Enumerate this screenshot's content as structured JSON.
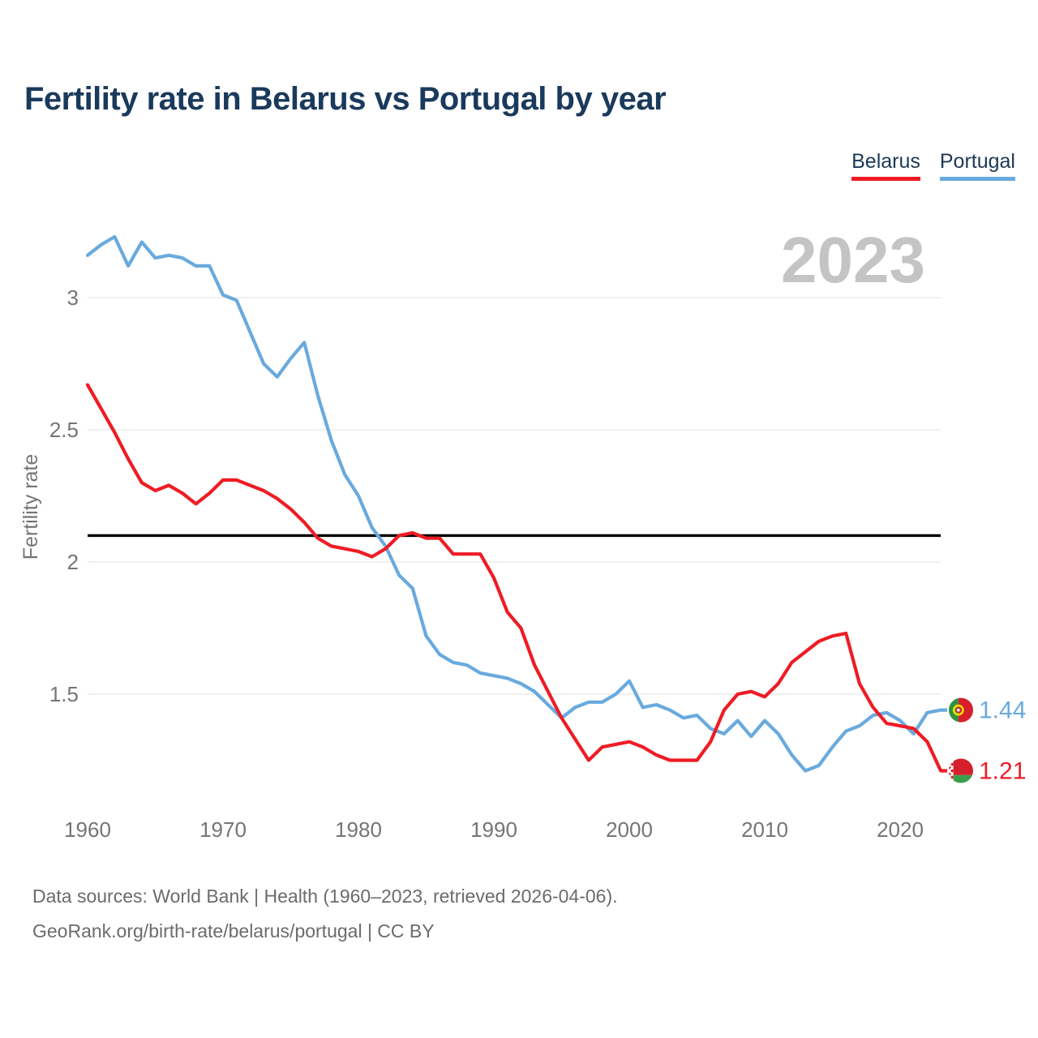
{
  "title": "Fertility rate in Belarus vs Portugal by year",
  "legend": [
    {
      "label": "Belarus",
      "color": "#ee1c25"
    },
    {
      "label": "Portugal",
      "color": "#69aade"
    }
  ],
  "watermark": "2023",
  "footer": {
    "line1": "Data sources: World Bank | Health (1960–2023, retrieved 2026-04-06).",
    "line2": "GeoRank.org/birth-rate/belarus/portugal | CC BY"
  },
  "colors": {
    "belarus_line": "#ee1c25",
    "portugal_line": "#69aade",
    "reference_line": "#000000",
    "gridline": "#ececec",
    "tick_text": "#757575",
    "watermark_text": "#c4c4c4",
    "title_text": "#1a3a5c",
    "footer_text": "#6b6b6b"
  },
  "chart_data": {
    "type": "line",
    "title": "Fertility rate in Belarus vs Portugal by year",
    "xlabel": "",
    "ylabel": "Fertility rate",
    "grid": "horizontal",
    "legend_position": "top-right",
    "watermark": "2023",
    "xlim": [
      1960,
      2023
    ],
    "ylim": [
      1.1,
      3.35
    ],
    "x_ticks": [
      1960,
      1970,
      1980,
      1990,
      2000,
      2010,
      2020
    ],
    "y_ticks": [
      3,
      2.5,
      2,
      1.5
    ],
    "y_tick_labels": [
      "3",
      "2.5",
      "2",
      "1.5"
    ],
    "reference_line": {
      "value": 2.1,
      "color": "#000000"
    },
    "x": [
      1960,
      1961,
      1962,
      1963,
      1964,
      1965,
      1966,
      1967,
      1968,
      1969,
      1970,
      1971,
      1972,
      1973,
      1974,
      1975,
      1976,
      1977,
      1978,
      1979,
      1980,
      1981,
      1982,
      1983,
      1984,
      1985,
      1986,
      1987,
      1988,
      1989,
      1990,
      1991,
      1992,
      1993,
      1994,
      1995,
      1996,
      1997,
      1998,
      1999,
      2000,
      2001,
      2002,
      2003,
      2004,
      2005,
      2006,
      2007,
      2008,
      2009,
      2010,
      2011,
      2012,
      2013,
      2014,
      2015,
      2016,
      2017,
      2018,
      2019,
      2020,
      2021,
      2022,
      2023
    ],
    "series": [
      {
        "name": "Belarus",
        "color": "#ee1c25",
        "flag": "belarus-flag",
        "end_label": "1.21",
        "values": [
          2.67,
          2.58,
          2.49,
          2.39,
          2.3,
          2.27,
          2.29,
          2.26,
          2.22,
          2.26,
          2.31,
          2.31,
          2.29,
          2.27,
          2.24,
          2.2,
          2.15,
          2.09,
          2.06,
          2.05,
          2.04,
          2.02,
          2.05,
          2.1,
          2.11,
          2.09,
          2.09,
          2.03,
          2.03,
          2.03,
          1.94,
          1.81,
          1.75,
          1.61,
          1.51,
          1.41,
          1.33,
          1.25,
          1.3,
          1.31,
          1.32,
          1.3,
          1.27,
          1.25,
          1.25,
          1.25,
          1.32,
          1.44,
          1.5,
          1.51,
          1.49,
          1.54,
          1.62,
          1.66,
          1.7,
          1.72,
          1.73,
          1.54,
          1.45,
          1.39,
          1.38,
          1.37,
          1.32,
          1.21
        ]
      },
      {
        "name": "Portugal",
        "color": "#69aade",
        "flag": "portugal-flag",
        "end_label": "1.44",
        "values": [
          3.16,
          3.2,
          3.23,
          3.12,
          3.21,
          3.15,
          3.16,
          3.15,
          3.12,
          3.12,
          3.01,
          2.99,
          2.87,
          2.75,
          2.7,
          2.77,
          2.83,
          2.63,
          2.46,
          2.33,
          2.25,
          2.13,
          2.06,
          1.95,
          1.9,
          1.72,
          1.65,
          1.62,
          1.61,
          1.58,
          1.57,
          1.56,
          1.54,
          1.51,
          1.46,
          1.41,
          1.45,
          1.47,
          1.47,
          1.5,
          1.55,
          1.45,
          1.46,
          1.44,
          1.41,
          1.42,
          1.37,
          1.35,
          1.4,
          1.34,
          1.4,
          1.35,
          1.27,
          1.21,
          1.23,
          1.3,
          1.36,
          1.38,
          1.42,
          1.43,
          1.4,
          1.35,
          1.43,
          1.44
        ]
      }
    ]
  }
}
